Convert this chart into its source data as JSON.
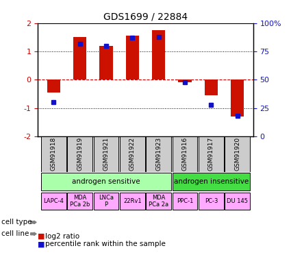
{
  "title": "GDS1699 / 22884",
  "samples": [
    "GSM91918",
    "GSM91919",
    "GSM91921",
    "GSM91922",
    "GSM91923",
    "GSM91916",
    "GSM91917",
    "GSM91920"
  ],
  "log2_ratio": [
    -0.45,
    1.5,
    1.2,
    1.55,
    1.75,
    -0.08,
    -0.55,
    -1.3
  ],
  "percentile_rank": [
    30,
    82,
    80,
    87,
    88,
    48,
    28,
    18
  ],
  "ylim": [
    -2,
    2
  ],
  "yticks_left": [
    -2,
    -1,
    0,
    1,
    2
  ],
  "yticks_right": [
    0,
    25,
    50,
    75,
    100
  ],
  "bar_color": "#cc1100",
  "dot_color": "#1111cc",
  "zero_line_color": "#cc0000",
  "dotted_line_color": "#000000",
  "bg_color": "#ffffff",
  "plot_bg": "#ffffff",
  "cell_type_groups": [
    {
      "label": "androgen sensitive",
      "start": 0,
      "end": 5,
      "color": "#aaffaa"
    },
    {
      "label": "androgen insensitive",
      "start": 5,
      "end": 8,
      "color": "#44dd44"
    }
  ],
  "cell_lines": [
    {
      "label": "LAPC-4",
      "start": 0,
      "end": 1
    },
    {
      "label": "MDA\nPCa 2b",
      "start": 1,
      "end": 2
    },
    {
      "label": "LNCa\nP",
      "start": 2,
      "end": 3
    },
    {
      "label": "22Rv1",
      "start": 3,
      "end": 4
    },
    {
      "label": "MDA\nPCa 2a",
      "start": 4,
      "end": 5
    },
    {
      "label": "PPC-1",
      "start": 5,
      "end": 6
    },
    {
      "label": "PC-3",
      "start": 6,
      "end": 7
    },
    {
      "label": "DU 145",
      "start": 7,
      "end": 8
    }
  ],
  "cell_line_color": "#ffaaff",
  "sample_box_color": "#cccccc",
  "legend_items": [
    {
      "label": "log2 ratio",
      "color": "#cc1100"
    },
    {
      "label": "percentile rank within the sample",
      "color": "#1111cc"
    }
  ]
}
